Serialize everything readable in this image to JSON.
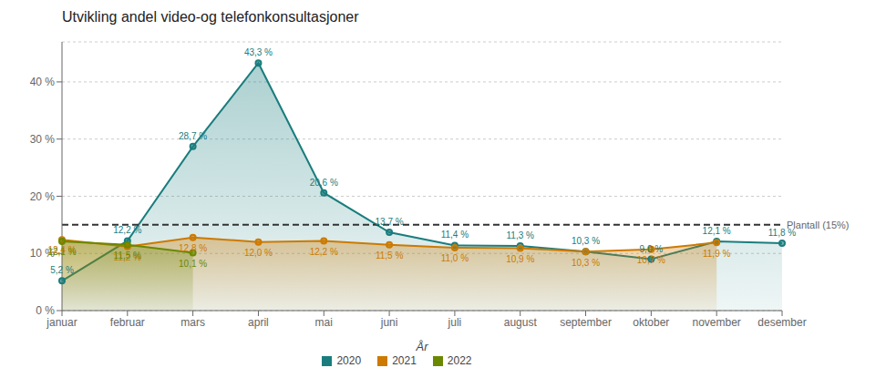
{
  "chart_data": {
    "type": "area",
    "title": "Utvikling andel video-og telefonkonsultasjoner",
    "xlabel": "År",
    "categories": [
      "januar",
      "februar",
      "mars",
      "april",
      "mai",
      "juni",
      "juli",
      "august",
      "september",
      "oktober",
      "november",
      "desember"
    ],
    "series": [
      {
        "name": "2020",
        "color": "#1a7d7d",
        "marker": "circle",
        "values": [
          5.2,
          12.2,
          28.7,
          43.3,
          20.6,
          13.7,
          11.4,
          11.3,
          10.3,
          9.0,
          12.1,
          11.8
        ],
        "value_labels": [
          "5,2 %",
          "12,2 %",
          "28,7 %",
          "43,3 %",
          "20,6 %",
          "13,7 %",
          "11,4 %",
          "11,3 %",
          "10,3 %",
          "9,0 %",
          "12,1 %",
          "11,8 %"
        ]
      },
      {
        "name": "2021",
        "color": "#cc7a00",
        "marker": "circle",
        "values": [
          12.4,
          11.2,
          12.8,
          12.0,
          12.2,
          11.5,
          11.0,
          10.9,
          10.3,
          10.7,
          11.9,
          null
        ],
        "value_labels": [
          "12,4 %",
          "11,2 %",
          "12,8 %",
          "12,0 %",
          "12,2 %",
          "11,5 %",
          "11,0 %",
          "10,9 %",
          "10,3 %",
          "10,7 %",
          "11,9 %",
          null
        ]
      },
      {
        "name": "2022",
        "color": "#6a8800",
        "marker": "circle",
        "values": [
          12.1,
          11.5,
          10.1,
          null,
          null,
          null,
          null,
          null,
          null,
          null,
          null,
          null
        ],
        "value_labels": [
          "12,1 %",
          "11,5 %",
          "10,1 %",
          null,
          null,
          null,
          null,
          null,
          null,
          null,
          null,
          null
        ]
      }
    ],
    "annotations": [
      {
        "y": 15.0,
        "label": "Plantall (15%)",
        "color": "#333333",
        "line_style": "dashed"
      }
    ],
    "ylim": [
      0,
      47
    ],
    "yticks": [
      {
        "value": 0,
        "label": "0 %"
      },
      {
        "value": 10,
        "label": "10 %"
      },
      {
        "value": 20,
        "label": "20 %"
      },
      {
        "value": 30,
        "label": "30 %"
      },
      {
        "value": 40,
        "label": "40 %"
      }
    ],
    "grid": true,
    "legend": "bottom",
    "data_labels": true
  }
}
